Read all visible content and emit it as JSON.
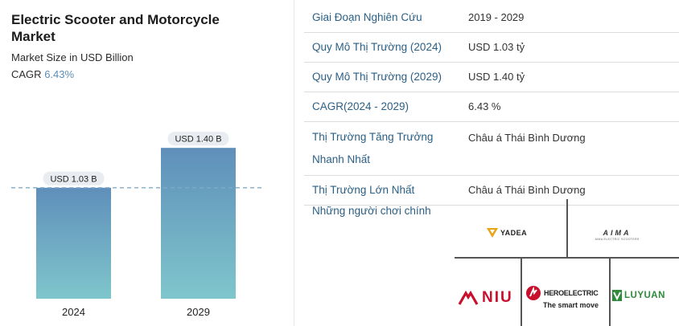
{
  "header": {
    "title": "Electric Scooter and Motorcycle Market",
    "subtitle": "Market Size in USD Billion",
    "cagr_label": "CAGR",
    "cagr_value": "6.43%"
  },
  "chart_data": {
    "type": "bar",
    "categories": [
      "2024",
      "2029"
    ],
    "values": [
      1.03,
      1.4
    ],
    "data_labels": [
      "USD 1.03 B",
      "USD 1.40 B"
    ],
    "title": "Electric Scooter and Motorcycle Market",
    "subtitle": "Market Size in USD Billion",
    "xlabel": "",
    "ylabel": "",
    "ylim": [
      0,
      1.58
    ],
    "grid": false,
    "reference_line": "dashed line at 2024 value",
    "colors": {
      "bar_top": "#5f8fba",
      "bar_bottom": "#7fc6cc",
      "label_bg": "#e9edf1",
      "dash": "#7fa9c9"
    }
  },
  "table": {
    "rows": [
      {
        "key": "Giai Đoạn Nghiên Cứu",
        "value": "2019 - 2029"
      },
      {
        "key": "Quy Mô Thị Trường (2024)",
        "value": "USD 1.03 tỷ"
      },
      {
        "key": "Quy Mô Thị Trường (2029)",
        "value": "USD 1.40 tỷ"
      },
      {
        "key": "CAGR(2024 - 2029)",
        "value": "6.43 %"
      },
      {
        "key": "Thị Trường Tăng Trưởng Nhanh Nhất",
        "value": "Châu á Thái Bình Dương"
      },
      {
        "key": "Thị Trường Lớn Nhất",
        "value": "Châu á Thái Bình Dương"
      }
    ]
  },
  "players": {
    "label": "Những người chơi chính",
    "logos": {
      "yadea": "YADEA",
      "aima": "AIMA",
      "aima_tag": "AIMA ELECTRIC SCOOTERS",
      "niu": "NIU",
      "hero_brand": "HEROELECTRIC",
      "hero_tag": "The smart move",
      "luyuan": "LUYUAN"
    },
    "colors": {
      "yadea": "#e8a317",
      "niu": "#c8102e",
      "hero": "#c8102e",
      "luyuan": "#2e8b3a"
    }
  }
}
